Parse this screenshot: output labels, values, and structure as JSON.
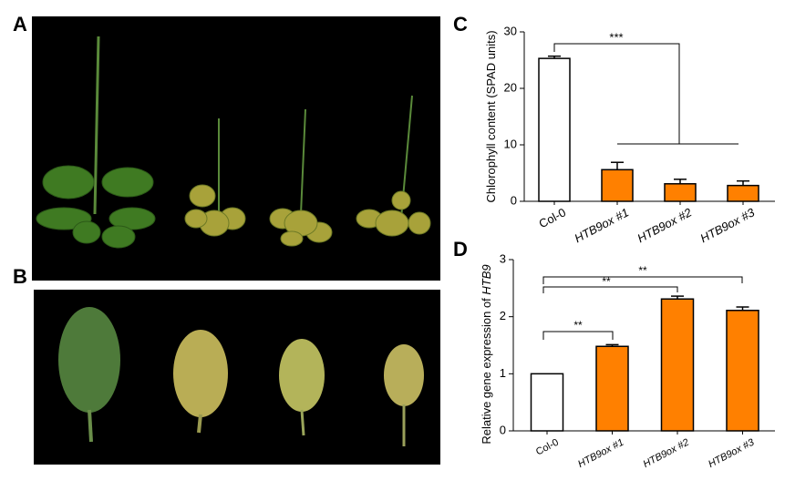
{
  "panel_labels": [
    "A",
    "B",
    "C",
    "D"
  ],
  "chart_data": [
    {
      "type": "bar",
      "ylabel": "Chlorophyll content (SPAD units)",
      "categories": [
        "Col-0",
        "HTB9ox #1",
        "HTB9ox #2",
        "HTB9ox #3"
      ],
      "values": [
        25.3,
        5.6,
        3.1,
        2.8
      ],
      "errors": [
        0.4,
        1.3,
        0.8,
        0.8
      ],
      "colors": [
        "#ffffff",
        "#ff8000",
        "#ff8000",
        "#ff8000"
      ],
      "ylim": [
        0,
        30
      ],
      "yticks": [
        0,
        10,
        20,
        30
      ],
      "annotations": [
        "***"
      ]
    },
    {
      "type": "bar",
      "ylabel": "Relative gene expression  of ",
      "ylabel_italic": "HTB9",
      "categories": [
        "Col-0",
        "HTB9ox #1",
        "HTB9ox #2",
        "HTB9ox #3"
      ],
      "values": [
        1.0,
        1.48,
        2.31,
        2.11
      ],
      "errors": [
        0,
        0.03,
        0.05,
        0.06
      ],
      "colors": [
        "#ffffff",
        "#ff8000",
        "#ff8000",
        "#ff8000"
      ],
      "ylim": [
        0,
        3
      ],
      "yticks": [
        0,
        1,
        2,
        3
      ],
      "annotations": [
        "**",
        "**",
        "**"
      ]
    }
  ]
}
